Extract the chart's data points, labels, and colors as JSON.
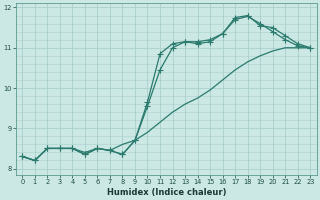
{
  "xlabel": "Humidex (Indice chaleur)",
  "bg_color": "#cce8e4",
  "grid_color": "#aacfcc",
  "line_color": "#2a7a6e",
  "xlim": [
    -0.5,
    23.5
  ],
  "ylim": [
    7.85,
    12.1
  ],
  "xticks": [
    0,
    1,
    2,
    3,
    4,
    5,
    6,
    7,
    8,
    9,
    10,
    11,
    12,
    13,
    14,
    15,
    16,
    17,
    18,
    19,
    20,
    21,
    22,
    23
  ],
  "yticks": [
    8,
    9,
    10,
    11,
    12
  ],
  "line1_x": [
    0,
    1,
    2,
    3,
    4,
    5,
    6,
    7,
    8,
    9,
    10,
    11,
    12,
    13,
    14,
    15,
    16,
    17,
    18,
    19,
    20,
    21,
    22,
    23
  ],
  "line1_y": [
    8.3,
    8.2,
    8.5,
    8.5,
    8.5,
    8.4,
    8.5,
    8.45,
    8.6,
    8.7,
    8.9,
    9.15,
    9.4,
    9.6,
    9.75,
    9.95,
    10.2,
    10.45,
    10.65,
    10.8,
    10.92,
    11.0,
    11.0,
    11.0
  ],
  "line2_x": [
    0,
    1,
    2,
    3,
    4,
    5,
    6,
    7,
    8,
    9,
    10,
    11,
    12,
    13,
    14,
    15,
    16,
    17,
    18,
    19,
    20,
    21,
    22,
    23
  ],
  "line2_y": [
    8.3,
    8.2,
    8.5,
    8.5,
    8.5,
    8.35,
    8.5,
    8.45,
    8.35,
    8.7,
    9.65,
    10.85,
    11.1,
    11.15,
    11.15,
    11.2,
    11.35,
    11.75,
    11.8,
    11.55,
    11.5,
    11.3,
    11.1,
    11.0
  ],
  "line3_x": [
    0,
    1,
    2,
    3,
    4,
    5,
    6,
    7,
    8,
    9,
    10,
    11,
    12,
    13,
    14,
    15,
    16,
    17,
    18,
    19,
    20,
    21,
    22,
    23
  ],
  "line3_y": [
    8.3,
    8.2,
    8.5,
    8.5,
    8.5,
    8.35,
    8.5,
    8.45,
    8.35,
    8.7,
    9.55,
    10.45,
    11.0,
    11.15,
    11.1,
    11.15,
    11.35,
    11.7,
    11.78,
    11.6,
    11.4,
    11.2,
    11.05,
    11.0
  ]
}
